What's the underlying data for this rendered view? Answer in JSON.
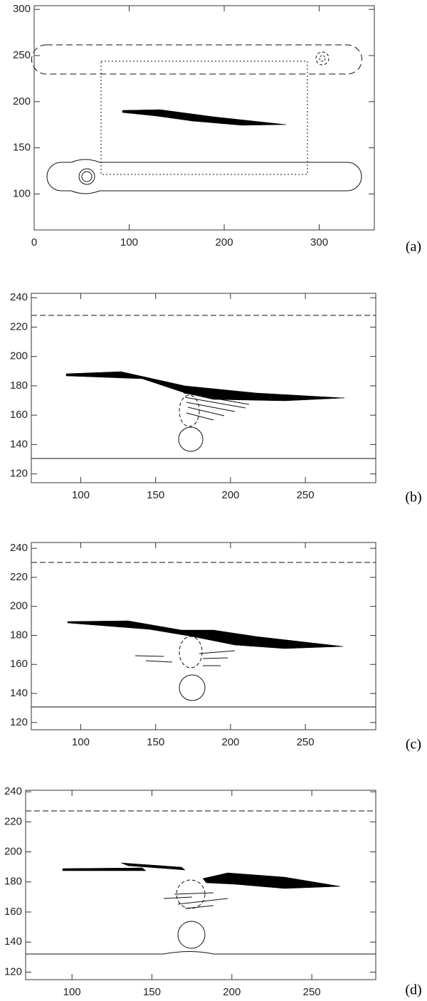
{
  "chart_data": [
    {
      "type": "contour",
      "label": "(a)",
      "xlim": [
        0,
        358
      ],
      "ylim": [
        61,
        304
      ],
      "xticks": [
        0,
        100,
        200,
        300
      ],
      "yticks": [
        100,
        150,
        200,
        250,
        300
      ]
    },
    {
      "type": "contour",
      "label": "(b)",
      "xlim": [
        67,
        297
      ],
      "ylim": [
        114,
        243
      ],
      "xticks": [
        100,
        150,
        200,
        250
      ],
      "yticks": [
        120,
        140,
        160,
        180,
        200,
        220,
        240
      ]
    },
    {
      "type": "contour",
      "label": "(c)",
      "xlim": [
        67,
        297
      ],
      "ylim": [
        115,
        244
      ],
      "xticks": [
        100,
        150,
        200,
        250
      ],
      "yticks": [
        120,
        140,
        160,
        180,
        200,
        220,
        240
      ]
    },
    {
      "type": "contour",
      "label": "(d)",
      "xlim": [
        71,
        290
      ],
      "ylim": [
        115,
        241
      ],
      "xticks": [
        100,
        150,
        200,
        250
      ],
      "yticks": [
        120,
        140,
        160,
        180,
        200,
        220,
        240
      ]
    }
  ]
}
